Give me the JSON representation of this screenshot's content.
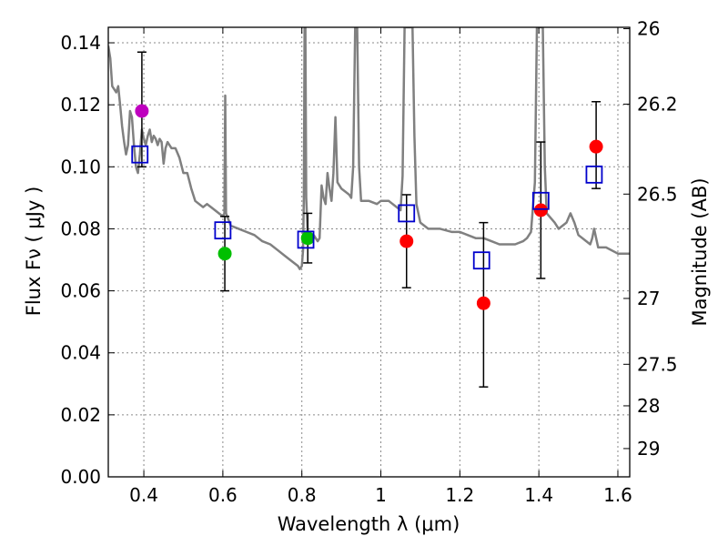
{
  "chart_data": {
    "type": "scatter",
    "xlabel": "Wavelength  λ (μm)",
    "ylabel": "Flux  Fν  ( μJy )",
    "ylabel_right": "Magnitude (AB)",
    "xlim": [
      0.31,
      1.63
    ],
    "ylim": [
      0.0,
      0.145
    ],
    "grid": true,
    "x_ticks": [
      {
        "value": 0.4,
        "label": "0.4"
      },
      {
        "value": 0.6,
        "label": "0.6"
      },
      {
        "value": 0.8,
        "label": "0.8"
      },
      {
        "value": 1.0,
        "label": "1"
      },
      {
        "value": 1.2,
        "label": "1.2"
      },
      {
        "value": 1.4,
        "label": "1.4"
      },
      {
        "value": 1.6,
        "label": "1.6"
      }
    ],
    "y_ticks": [
      {
        "value": 0.0,
        "label": "0.00"
      },
      {
        "value": 0.02,
        "label": "0.02"
      },
      {
        "value": 0.04,
        "label": "0.04"
      },
      {
        "value": 0.06,
        "label": "0.06"
      },
      {
        "value": 0.08,
        "label": "0.08"
      },
      {
        "value": 0.1,
        "label": "0.10"
      },
      {
        "value": 0.12,
        "label": "0.12"
      },
      {
        "value": 0.14,
        "label": "0.14"
      }
    ],
    "mag_ticks": [
      {
        "mag": 26,
        "label": "26"
      },
      {
        "mag": 26.2,
        "label": "26.2"
      },
      {
        "mag": 26.5,
        "label": "26.5"
      },
      {
        "mag": 27,
        "label": "27"
      },
      {
        "mag": 27.5,
        "label": "27.5"
      },
      {
        "mag": 28,
        "label": "28"
      },
      {
        "mag": 29,
        "label": "29"
      }
    ],
    "observed": [
      {
        "x": 0.395,
        "y": 0.118,
        "lo": 0.1,
        "hi": 0.137,
        "color": "#bf00bf"
      },
      {
        "x": 0.605,
        "y": 0.072,
        "lo": 0.06,
        "hi": 0.084,
        "color": "#00bf00"
      },
      {
        "x": 0.815,
        "y": 0.077,
        "lo": 0.069,
        "hi": 0.085,
        "color": "#00bf00"
      },
      {
        "x": 1.065,
        "y": 0.076,
        "lo": 0.061,
        "hi": 0.091,
        "color": "#ff0000"
      },
      {
        "x": 1.26,
        "y": 0.056,
        "lo": 0.029,
        "hi": 0.082,
        "color": "#ff0000"
      },
      {
        "x": 1.405,
        "y": 0.086,
        "lo": 0.064,
        "hi": 0.108,
        "color": "#ff0000"
      },
      {
        "x": 1.545,
        "y": 0.1065,
        "lo": 0.093,
        "hi": 0.121,
        "color": "#ff0000"
      }
    ],
    "model_points": [
      {
        "x": 0.39,
        "y": 0.104
      },
      {
        "x": 0.6,
        "y": 0.0795
      },
      {
        "x": 0.81,
        "y": 0.0765
      },
      {
        "x": 1.065,
        "y": 0.085
      },
      {
        "x": 1.255,
        "y": 0.0698
      },
      {
        "x": 1.405,
        "y": 0.089
      },
      {
        "x": 1.54,
        "y": 0.0975
      }
    ],
    "model_spectrum": {
      "color": "#808080",
      "points": [
        [
          0.31,
          0.139
        ],
        [
          0.315,
          0.135
        ],
        [
          0.32,
          0.126
        ],
        [
          0.33,
          0.124
        ],
        [
          0.335,
          0.126
        ],
        [
          0.34,
          0.12
        ],
        [
          0.345,
          0.113
        ],
        [
          0.35,
          0.108
        ],
        [
          0.355,
          0.104
        ],
        [
          0.36,
          0.107
        ],
        [
          0.365,
          0.118
        ],
        [
          0.37,
          0.116
        ],
        [
          0.375,
          0.107
        ],
        [
          0.38,
          0.1
        ],
        [
          0.385,
          0.098
        ],
        [
          0.39,
          0.104
        ],
        [
          0.395,
          0.112
        ],
        [
          0.4,
          0.109
        ],
        [
          0.405,
          0.107
        ],
        [
          0.41,
          0.11
        ],
        [
          0.415,
          0.112
        ],
        [
          0.42,
          0.108
        ],
        [
          0.425,
          0.11
        ],
        [
          0.43,
          0.109
        ],
        [
          0.435,
          0.107
        ],
        [
          0.44,
          0.109
        ],
        [
          0.445,
          0.108
        ],
        [
          0.45,
          0.101
        ],
        [
          0.455,
          0.106
        ],
        [
          0.46,
          0.108
        ],
        [
          0.47,
          0.106
        ],
        [
          0.48,
          0.106
        ],
        [
          0.49,
          0.103
        ],
        [
          0.5,
          0.098
        ],
        [
          0.51,
          0.098
        ],
        [
          0.52,
          0.093
        ],
        [
          0.53,
          0.089
        ],
        [
          0.54,
          0.088
        ],
        [
          0.55,
          0.087
        ],
        [
          0.56,
          0.088
        ],
        [
          0.57,
          0.087
        ],
        [
          0.58,
          0.086
        ],
        [
          0.59,
          0.085
        ],
        [
          0.6,
          0.084
        ],
        [
          0.604,
          0.085
        ],
        [
          0.606,
          0.123
        ],
        [
          0.608,
          0.085
        ],
        [
          0.62,
          0.081
        ],
        [
          0.64,
          0.08
        ],
        [
          0.66,
          0.079
        ],
        [
          0.68,
          0.078
        ],
        [
          0.7,
          0.076
        ],
        [
          0.72,
          0.075
        ],
        [
          0.74,
          0.073
        ],
        [
          0.76,
          0.071
        ],
        [
          0.78,
          0.069
        ],
        [
          0.79,
          0.068
        ],
        [
          0.795,
          0.067
        ],
        [
          0.8,
          0.068
        ],
        [
          0.803,
          0.073
        ],
        [
          0.805,
          0.09
        ],
        [
          0.807,
          0.145
        ],
        [
          0.809,
          0.145
        ],
        [
          0.811,
          0.09
        ],
        [
          0.815,
          0.078
        ],
        [
          0.83,
          0.078
        ],
        [
          0.84,
          0.076
        ],
        [
          0.845,
          0.077
        ],
        [
          0.85,
          0.094
        ],
        [
          0.855,
          0.09
        ],
        [
          0.86,
          0.088
        ],
        [
          0.865,
          0.098
        ],
        [
          0.87,
          0.093
        ],
        [
          0.875,
          0.089
        ],
        [
          0.88,
          0.098
        ],
        [
          0.885,
          0.116
        ],
        [
          0.89,
          0.095
        ],
        [
          0.9,
          0.093
        ],
        [
          0.91,
          0.092
        ],
        [
          0.92,
          0.091
        ],
        [
          0.925,
          0.09
        ],
        [
          0.93,
          0.1
        ],
        [
          0.935,
          0.145
        ],
        [
          0.94,
          0.145
        ],
        [
          0.945,
          0.1
        ],
        [
          0.95,
          0.089
        ],
        [
          0.97,
          0.089
        ],
        [
          0.99,
          0.088
        ],
        [
          1.0,
          0.089
        ],
        [
          1.02,
          0.089
        ],
        [
          1.03,
          0.088
        ],
        [
          1.05,
          0.086
        ],
        [
          1.055,
          0.097
        ],
        [
          1.06,
          0.145
        ],
        [
          1.08,
          0.145
        ],
        [
          1.085,
          0.11
        ],
        [
          1.09,
          0.088
        ],
        [
          1.1,
          0.082
        ],
        [
          1.12,
          0.08
        ],
        [
          1.15,
          0.08
        ],
        [
          1.18,
          0.079
        ],
        [
          1.2,
          0.079
        ],
        [
          1.22,
          0.078
        ],
        [
          1.24,
          0.077
        ],
        [
          1.26,
          0.077
        ],
        [
          1.28,
          0.076
        ],
        [
          1.3,
          0.075
        ],
        [
          1.32,
          0.075
        ],
        [
          1.34,
          0.075
        ],
        [
          1.36,
          0.076
        ],
        [
          1.37,
          0.077
        ],
        [
          1.38,
          0.079
        ],
        [
          1.39,
          0.095
        ],
        [
          1.395,
          0.145
        ],
        [
          1.41,
          0.145
        ],
        [
          1.415,
          0.1
        ],
        [
          1.42,
          0.085
        ],
        [
          1.44,
          0.082
        ],
        [
          1.45,
          0.08
        ],
        [
          1.47,
          0.082
        ],
        [
          1.48,
          0.085
        ],
        [
          1.49,
          0.082
        ],
        [
          1.5,
          0.078
        ],
        [
          1.52,
          0.076
        ],
        [
          1.53,
          0.075
        ],
        [
          1.535,
          0.077
        ],
        [
          1.54,
          0.08
        ],
        [
          1.545,
          0.077
        ],
        [
          1.55,
          0.074
        ],
        [
          1.57,
          0.074
        ],
        [
          1.6,
          0.072
        ],
        [
          1.63,
          0.072
        ]
      ]
    }
  }
}
